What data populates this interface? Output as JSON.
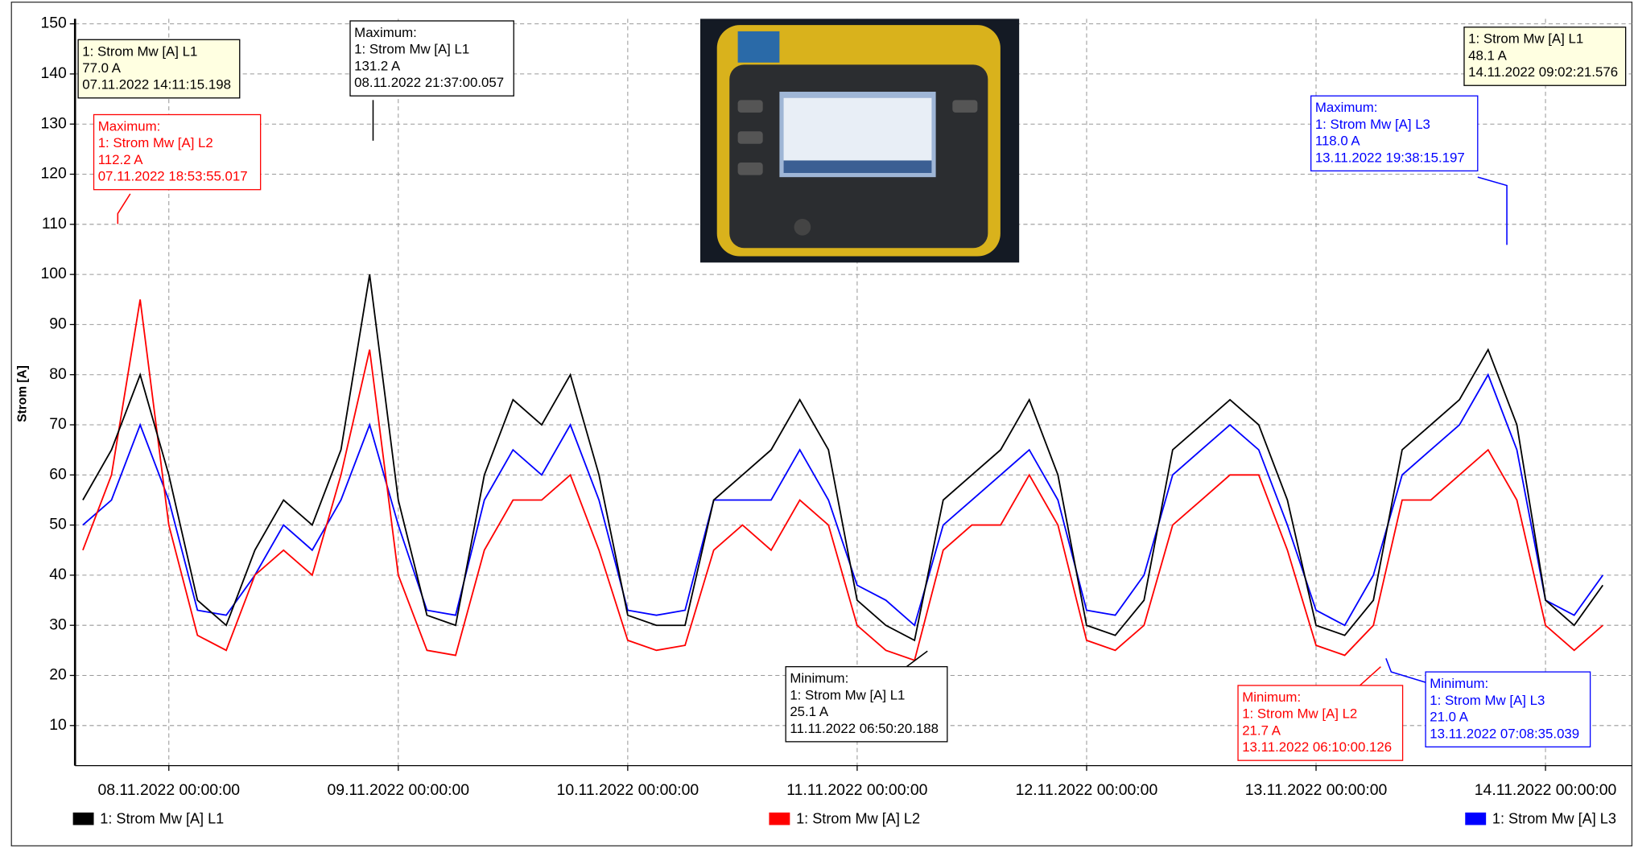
{
  "chart_data": {
    "type": "line",
    "y_label": "Strom [A]",
    "x": [
      "07.11.2022 15:00:00",
      "07.11.2022 18:00:00",
      "07.11.2022 21:00:00",
      "08.11.2022 00:00:00",
      "08.11.2022 03:00:00",
      "08.11.2022 06:00:00",
      "08.11.2022 09:00:00",
      "08.11.2022 12:00:00",
      "08.11.2022 15:00:00",
      "08.11.2022 18:00:00",
      "08.11.2022 21:00:00",
      "09.11.2022 00:00:00",
      "09.11.2022 03:00:00",
      "09.11.2022 06:00:00",
      "09.11.2022 09:00:00",
      "09.11.2022 12:00:00",
      "09.11.2022 15:00:00",
      "09.11.2022 18:00:00",
      "09.11.2022 21:00:00",
      "10.11.2022 00:00:00",
      "10.11.2022 03:00:00",
      "10.11.2022 06:00:00",
      "10.11.2022 09:00:00",
      "10.11.2022 12:00:00",
      "10.11.2022 15:00:00",
      "10.11.2022 18:00:00",
      "10.11.2022 21:00:00",
      "11.11.2022 00:00:00",
      "11.11.2022 03:00:00",
      "11.11.2022 06:00:00",
      "11.11.2022 09:00:00",
      "11.11.2022 12:00:00",
      "11.11.2022 15:00:00",
      "11.11.2022 18:00:00",
      "11.11.2022 21:00:00",
      "12.11.2022 00:00:00",
      "12.11.2022 03:00:00",
      "12.11.2022 06:00:00",
      "12.11.2022 09:00:00",
      "12.11.2022 12:00:00",
      "12.11.2022 15:00:00",
      "12.11.2022 18:00:00",
      "12.11.2022 21:00:00",
      "13.11.2022 00:00:00",
      "13.11.2022 03:00:00",
      "13.11.2022 06:00:00",
      "13.11.2022 09:00:00",
      "13.11.2022 12:00:00",
      "13.11.2022 15:00:00",
      "13.11.2022 18:00:00",
      "13.11.2022 21:00:00",
      "14.11.2022 00:00:00",
      "14.11.2022 03:00:00",
      "14.11.2022 06:00:00"
    ],
    "series": [
      {
        "name": "1: Strom Mw [A] L1",
        "color": "#000000",
        "values": [
          55,
          65,
          80,
          60,
          35,
          30,
          45,
          55,
          50,
          65,
          100,
          55,
          32,
          30,
          60,
          75,
          70,
          80,
          60,
          32,
          30,
          30,
          55,
          60,
          65,
          75,
          65,
          35,
          30,
          27,
          55,
          60,
          65,
          75,
          60,
          30,
          28,
          35,
          65,
          70,
          75,
          70,
          55,
          30,
          28,
          35,
          65,
          70,
          75,
          85,
          70,
          35,
          30,
          38
        ]
      },
      {
        "name": "1: Strom Mw [A] L2",
        "color": "#ff0000",
        "values": [
          45,
          60,
          95,
          50,
          28,
          25,
          40,
          45,
          40,
          60,
          85,
          40,
          25,
          24,
          45,
          55,
          55,
          60,
          45,
          27,
          25,
          26,
          45,
          50,
          45,
          55,
          50,
          30,
          25,
          23,
          45,
          50,
          50,
          60,
          50,
          27,
          25,
          30,
          50,
          55,
          60,
          60,
          45,
          26,
          24,
          30,
          55,
          55,
          60,
          65,
          55,
          30,
          25,
          30
        ]
      },
      {
        "name": "1: Strom Mw [A] L3",
        "color": "#0000ff",
        "values": [
          50,
          55,
          70,
          55,
          33,
          32,
          40,
          50,
          45,
          55,
          70,
          50,
          33,
          32,
          55,
          65,
          60,
          70,
          55,
          33,
          32,
          33,
          55,
          55,
          55,
          65,
          55,
          38,
          35,
          30,
          50,
          55,
          60,
          65,
          55,
          33,
          32,
          40,
          60,
          65,
          70,
          65,
          50,
          33,
          30,
          40,
          60,
          65,
          70,
          80,
          65,
          35,
          32,
          40
        ]
      }
    ],
    "xlim": [
      "07.11.2022 14:11:15",
      "14.11.2022 09:02:21"
    ],
    "xticks": [
      "08.11.2022 00:00:00",
      "09.11.2022 00:00:00",
      "10.11.2022 00:00:00",
      "11.11.2022 00:00:00",
      "12.11.2022 00:00:00",
      "13.11.2022 00:00:00",
      "14.11.2022 00:00:00"
    ],
    "ylim": [
      2,
      151
    ],
    "yticks": [
      10,
      20,
      30,
      40,
      50,
      60,
      70,
      80,
      90,
      100,
      110,
      120,
      130,
      140,
      150
    ],
    "grid": true,
    "annotations": [
      {
        "color": "#000000",
        "background": "#ffffe1",
        "lines": [
          "1: Strom Mw [A] L1",
          "77.0 A",
          "07.11.2022 14:11:15.198"
        ]
      },
      {
        "color": "#000000",
        "background": "#ffffff",
        "lines": [
          "Maximum:",
          "1: Strom Mw [A] L1",
          "131.2 A",
          "08.11.2022 21:37:00.057"
        ]
      },
      {
        "color": "#ff0000",
        "background": "#ffffff",
        "lines": [
          "Maximum:",
          "1: Strom Mw [A] L2",
          "112.2 A",
          "07.11.2022 18:53:55.017"
        ]
      },
      {
        "color": "#000000",
        "background": "#ffffe1",
        "lines": [
          "1: Strom Mw [A] L1",
          "48.1 A",
          "14.11.2022 09:02:21.576"
        ]
      },
      {
        "color": "#0000ff",
        "background": "#ffffff",
        "lines": [
          "Maximum:",
          "1: Strom Mw [A] L3",
          "118.0 A",
          "13.11.2022 19:38:15.197"
        ]
      },
      {
        "color": "#000000",
        "background": "#ffffff",
        "lines": [
          "Minimum:",
          "1: Strom Mw [A] L1",
          "25.1 A",
          "11.11.2022 06:50:20.188"
        ]
      },
      {
        "color": "#ff0000",
        "background": "#ffffff",
        "lines": [
          "Minimum:",
          "1: Strom Mw [A] L2",
          "21.7 A",
          "13.11.2022 06:10:00.126"
        ]
      },
      {
        "color": "#0000ff",
        "background": "#ffffff",
        "lines": [
          "Minimum:",
          "1: Strom Mw [A] L3",
          "21.0 A",
          "13.11.2022 07:08:35.039"
        ]
      }
    ]
  }
}
